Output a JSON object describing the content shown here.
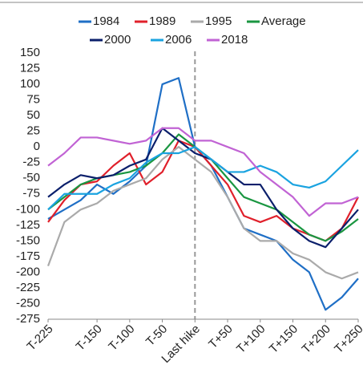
{
  "chart_data": {
    "type": "line",
    "x": [
      -225,
      -200,
      -175,
      -150,
      -125,
      -100,
      -75,
      -50,
      -25,
      0,
      25,
      50,
      75,
      100,
      125,
      150,
      175,
      200,
      225,
      250
    ],
    "series": [
      {
        "name": "1984",
        "color": "#1f6fc6",
        "values": [
          -115,
          -100,
          -85,
          -60,
          -75,
          -55,
          -30,
          100,
          110,
          0,
          -30,
          -80,
          -130,
          -140,
          -150,
          -180,
          -200,
          -260,
          -240,
          -210
        ]
      },
      {
        "name": "1989",
        "color": "#e0202b",
        "values": [
          -120,
          -85,
          -60,
          -55,
          -30,
          -10,
          -60,
          -40,
          10,
          0,
          -30,
          -60,
          -110,
          -120,
          -110,
          -130,
          -140,
          -150,
          -130,
          -80
        ]
      },
      {
        "name": "1995",
        "color": "#aaaaaa",
        "values": [
          -190,
          -120,
          -100,
          -90,
          -70,
          -60,
          -50,
          -20,
          0,
          -20,
          -40,
          -80,
          -130,
          -150,
          -150,
          -170,
          -180,
          -200,
          -210,
          -200
        ]
      },
      {
        "name": "Average",
        "color": "#1a9641",
        "values": [
          -100,
          -80,
          -60,
          -50,
          -45,
          -40,
          -30,
          -10,
          20,
          0,
          -20,
          -50,
          -80,
          -90,
          -100,
          -120,
          -140,
          -150,
          -135,
          -115
        ]
      },
      {
        "name": "2000",
        "color": "#0b1f6b",
        "values": [
          -80,
          -60,
          -45,
          -50,
          -45,
          -30,
          -20,
          30,
          10,
          -10,
          -20,
          -40,
          -60,
          -60,
          -100,
          -130,
          -150,
          -160,
          -130,
          -100
        ]
      },
      {
        "name": "2006",
        "color": "#1aa3e0",
        "values": [
          -100,
          -75,
          -75,
          -75,
          -60,
          -50,
          -25,
          -10,
          -10,
          0,
          -20,
          -40,
          -40,
          -30,
          -40,
          -60,
          -65,
          -55,
          -30,
          -5
        ]
      },
      {
        "name": "2018",
        "color": "#c163d4",
        "values": [
          -30,
          -10,
          15,
          15,
          10,
          5,
          10,
          30,
          30,
          10,
          10,
          0,
          -10,
          -40,
          -60,
          -80,
          -110,
          -90,
          -90,
          -80
        ]
      }
    ],
    "xlim": [
      -225,
      250
    ],
    "xticks": [
      {
        "value": -225,
        "label": "T-225"
      },
      {
        "value": -150,
        "label": "T-150"
      },
      {
        "value": -100,
        "label": "T-100"
      },
      {
        "value": -50,
        "label": "T-50"
      },
      {
        "value": 0,
        "label": "Last hike"
      },
      {
        "value": 50,
        "label": "T+50"
      },
      {
        "value": 100,
        "label": "T+100"
      },
      {
        "value": 150,
        "label": "T+150"
      },
      {
        "value": 200,
        "label": "T+200"
      },
      {
        "value": 250,
        "label": "T+250"
      }
    ],
    "ylim": [
      -275,
      150
    ],
    "yticks": [
      150,
      125,
      100,
      75,
      50,
      25,
      0,
      -25,
      -50,
      -75,
      -100,
      -125,
      -150,
      -175,
      -200,
      -225,
      -250,
      -275
    ],
    "grid": false
  }
}
